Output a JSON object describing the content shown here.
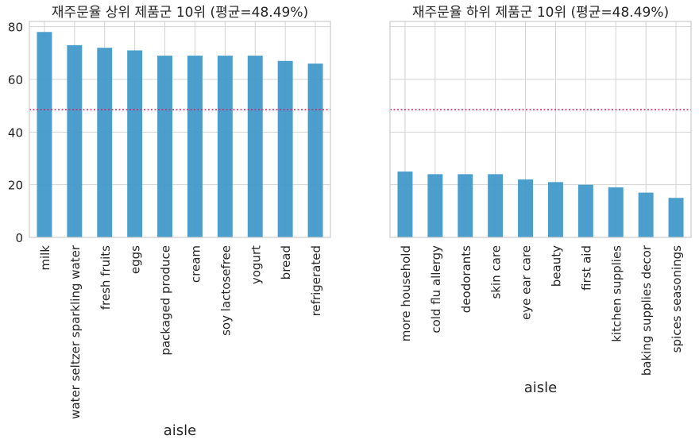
{
  "chart_data": [
    {
      "type": "bar",
      "title": "재주문율 상위 제품군 10위  (평균=48.49%)",
      "xlabel": "aisle",
      "ylabel": "",
      "ylim": [
        0,
        82
      ],
      "yticks": [
        0,
        20,
        40,
        60,
        80
      ],
      "grid": true,
      "bar_color": "#3d97c8",
      "mean_line": {
        "value": 48.49,
        "color": "#d81b60",
        "style": "dotted"
      },
      "categories": [
        "milk",
        "water seltzer sparkling water",
        "fresh fruits",
        "eggs",
        "packaged produce",
        "cream",
        "soy lactosefree",
        "yogurt",
        "bread",
        "refrigerated"
      ],
      "values": [
        78,
        73,
        72,
        71,
        69,
        69,
        69,
        69,
        67,
        66
      ]
    },
    {
      "type": "bar",
      "title": "재주문율 하위 제품군 10위 (평균=48.49%)",
      "xlabel": "aisle",
      "ylabel": "",
      "ylim": [
        0,
        82
      ],
      "yticks": [
        0,
        20,
        40,
        60,
        80
      ],
      "sharey": true,
      "grid": true,
      "bar_color": "#3d97c8",
      "mean_line": {
        "value": 48.49,
        "color": "#d81b60",
        "style": "dotted"
      },
      "categories": [
        "more household",
        "cold flu allergy",
        "deodorants",
        "skin care",
        "eye ear care",
        "beauty",
        "first aid",
        "kitchen supplies",
        "baking supplies decor",
        "spices seasonings"
      ],
      "values": [
        25,
        24,
        24,
        24,
        22,
        21,
        20,
        19,
        17,
        15
      ]
    }
  ]
}
